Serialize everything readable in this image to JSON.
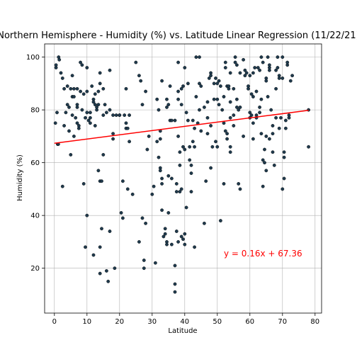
{
  "chart_data": {
    "type": "scatter",
    "title": "Northern Hemisphere - Humidity (%) vs. Latitude Linear Regression (11/22/21)",
    "xlabel": "Latitude",
    "ylabel": "Humidity (%)",
    "xlim": [
      -3,
      82
    ],
    "ylim": [
      3,
      105
    ],
    "xticks": [
      0,
      10,
      20,
      30,
      40,
      50,
      60,
      70,
      80
    ],
    "yticks": [
      20,
      40,
      60,
      80,
      100
    ],
    "grid": true,
    "point_color": "#1f3a4d",
    "line_color": "#ff0000",
    "annotation": {
      "text": "y = 0.16x + 67.36",
      "x": 52,
      "y": 25.5,
      "color": "#ff0000"
    },
    "regression": {
      "slope": 0.16,
      "intercept": 67.36,
      "x_range": [
        0,
        78
      ]
    },
    "points": [
      [
        0.5,
        97
      ],
      [
        0.5,
        96
      ],
      [
        0.8,
        79
      ],
      [
        0.3,
        75
      ],
      [
        1,
        67
      ],
      [
        1.2,
        67
      ],
      [
        1.3,
        100
      ],
      [
        1.5,
        99
      ],
      [
        2,
        94
      ],
      [
        2.5,
        92
      ],
      [
        2.5,
        51
      ],
      [
        3,
        88
      ],
      [
        3,
        74
      ],
      [
        3.5,
        79
      ],
      [
        4,
        82
      ],
      [
        4,
        89
      ],
      [
        4.5,
        81
      ],
      [
        4.5,
        72
      ],
      [
        5,
        88
      ],
      [
        5,
        63
      ],
      [
        5.5,
        93
      ],
      [
        5.5,
        78
      ],
      [
        5.5,
        85
      ],
      [
        6,
        88
      ],
      [
        6,
        85
      ],
      [
        6,
        70
      ],
      [
        6.5,
        77
      ],
      [
        7,
        81
      ],
      [
        7,
        75
      ],
      [
        7,
        88
      ],
      [
        7,
        82
      ],
      [
        7.5,
        73
      ],
      [
        7.5,
        74
      ],
      [
        8,
        87
      ],
      [
        8,
        98
      ],
      [
        8.5,
        97
      ],
      [
        8.5,
        80
      ],
      [
        9,
        52
      ],
      [
        9,
        86
      ],
      [
        9.5,
        77
      ],
      [
        9.5,
        28
      ],
      [
        10,
        96
      ],
      [
        10,
        87
      ],
      [
        10,
        79
      ],
      [
        10,
        40
      ],
      [
        10.5,
        76
      ],
      [
        11,
        75
      ],
      [
        11,
        77
      ],
      [
        11,
        79
      ],
      [
        11.5,
        89
      ],
      [
        12,
        84
      ],
      [
        12,
        83
      ],
      [
        12,
        25
      ],
      [
        12.5,
        74
      ],
      [
        12.5,
        82
      ],
      [
        12.5,
        86
      ],
      [
        13,
        80
      ],
      [
        13,
        81
      ],
      [
        13.5,
        87
      ],
      [
        13.5,
        82
      ],
      [
        13.5,
        57
      ],
      [
        14,
        94
      ],
      [
        14,
        90
      ],
      [
        14,
        53
      ],
      [
        14,
        28
      ],
      [
        14,
        18
      ],
      [
        14.5,
        53
      ],
      [
        14.5,
        35
      ],
      [
        15,
        88
      ],
      [
        15,
        78
      ],
      [
        15,
        63
      ],
      [
        15.5,
        82
      ],
      [
        16,
        79
      ],
      [
        16,
        19
      ],
      [
        16.5,
        15
      ],
      [
        17,
        95
      ],
      [
        17,
        80
      ],
      [
        17,
        34
      ],
      [
        18,
        78
      ],
      [
        18,
        71
      ],
      [
        18,
        69
      ],
      [
        18.5,
        20
      ],
      [
        19,
        78
      ],
      [
        20,
        78
      ],
      [
        20,
        78
      ],
      [
        20.5,
        41
      ],
      [
        21,
        53
      ],
      [
        21,
        39
      ],
      [
        21.5,
        78
      ],
      [
        22,
        88
      ],
      [
        22,
        75
      ],
      [
        22,
        73
      ],
      [
        22.5,
        73
      ],
      [
        22.5,
        50
      ],
      [
        23,
        78
      ],
      [
        23,
        68
      ],
      [
        24,
        48
      ],
      [
        25,
        98
      ],
      [
        26,
        93
      ],
      [
        26,
        30
      ],
      [
        26.5,
        91
      ],
      [
        27,
        82
      ],
      [
        27,
        39
      ],
      [
        27.5,
        23
      ],
      [
        27.5,
        20
      ],
      [
        28,
        37
      ],
      [
        28,
        87
      ],
      [
        28.5,
        65
      ],
      [
        29,
        70
      ],
      [
        30,
        48
      ],
      [
        30.5,
        51
      ],
      [
        31,
        22
      ],
      [
        31.5,
        84
      ],
      [
        31.5,
        68
      ],
      [
        32,
        80
      ],
      [
        32,
        62
      ],
      [
        32.5,
        72
      ],
      [
        32.5,
        69
      ],
      [
        32.5,
        58
      ],
      [
        32.5,
        57
      ],
      [
        33,
        91
      ],
      [
        33,
        42
      ],
      [
        33,
        54
      ],
      [
        33,
        52
      ],
      [
        33.5,
        32
      ],
      [
        34,
        35
      ],
      [
        34,
        33
      ],
      [
        34.5,
        84
      ],
      [
        34.5,
        81
      ],
      [
        34.5,
        30
      ],
      [
        34.5,
        29
      ],
      [
        35,
        55
      ],
      [
        35,
        41
      ],
      [
        35,
        82
      ],
      [
        35.5,
        89
      ],
      [
        35.5,
        76
      ],
      [
        36,
        76
      ],
      [
        36,
        54
      ],
      [
        36,
        29
      ],
      [
        37,
        14
      ],
      [
        37,
        11
      ],
      [
        37,
        76
      ],
      [
        37,
        21
      ],
      [
        37.5,
        49
      ],
      [
        37.5,
        52
      ],
      [
        37.5,
        34
      ],
      [
        38,
        98
      ],
      [
        38,
        87
      ],
      [
        38,
        84
      ],
      [
        38,
        70
      ],
      [
        38,
        30
      ],
      [
        38.5,
        64
      ],
      [
        38.5,
        59
      ],
      [
        38.5,
        49
      ],
      [
        39,
        88
      ],
      [
        39,
        82
      ],
      [
        39,
        50
      ],
      [
        39,
        32
      ],
      [
        39.5,
        89
      ],
      [
        39.5,
        31
      ],
      [
        39.5,
        66
      ],
      [
        40,
        96
      ],
      [
        40,
        33
      ],
      [
        40,
        29
      ],
      [
        40,
        65
      ],
      [
        40.5,
        43
      ],
      [
        40.5,
        79
      ],
      [
        41,
        90
      ],
      [
        41,
        76
      ],
      [
        41.5,
        66
      ],
      [
        41.5,
        61
      ],
      [
        42,
        56
      ],
      [
        42,
        49
      ],
      [
        42,
        59
      ],
      [
        42.5,
        76
      ],
      [
        42.5,
        68
      ],
      [
        43,
        28
      ],
      [
        43,
        66
      ],
      [
        43,
        73
      ],
      [
        43.5,
        100
      ],
      [
        43.5,
        85
      ],
      [
        44,
        75
      ],
      [
        44.5,
        100
      ],
      [
        44.5,
        90
      ],
      [
        44.5,
        80
      ],
      [
        45,
        72
      ],
      [
        45,
        89
      ],
      [
        46,
        81
      ],
      [
        46,
        37
      ],
      [
        46.5,
        53
      ],
      [
        47,
        83
      ],
      [
        47,
        71
      ],
      [
        47,
        77
      ],
      [
        47.5,
        92
      ],
      [
        48,
        94
      ],
      [
        48,
        93
      ],
      [
        48,
        74
      ],
      [
        48,
        58
      ],
      [
        48.5,
        66
      ],
      [
        49,
        84
      ],
      [
        49,
        90
      ],
      [
        49.5,
        92
      ],
      [
        49.5,
        68
      ],
      [
        50,
        66
      ],
      [
        50,
        84
      ],
      [
        50,
        90
      ],
      [
        50.5,
        91
      ],
      [
        50.5,
        82
      ],
      [
        51,
        38
      ],
      [
        51,
        89
      ],
      [
        51.5,
        80
      ],
      [
        52,
        75
      ],
      [
        52,
        52
      ],
      [
        52,
        85
      ],
      [
        52.5,
        72
      ],
      [
        52.5,
        98
      ],
      [
        52.5,
        96
      ],
      [
        53,
        71
      ],
      [
        53,
        89
      ],
      [
        53,
        69
      ],
      [
        53.5,
        88
      ],
      [
        53.5,
        89
      ],
      [
        54,
        77
      ],
      [
        54,
        94
      ],
      [
        54,
        83
      ],
      [
        54,
        64
      ],
      [
        54,
        66
      ],
      [
        55,
        74
      ],
      [
        55,
        78
      ],
      [
        55,
        88
      ],
      [
        55.5,
        100
      ],
      [
        55.5,
        98
      ],
      [
        56,
        84
      ],
      [
        56,
        97
      ],
      [
        56,
        81
      ],
      [
        56.5,
        80
      ],
      [
        56.5,
        52
      ],
      [
        57,
        81
      ],
      [
        57,
        94
      ],
      [
        57,
        50
      ],
      [
        58,
        99
      ],
      [
        58,
        70
      ],
      [
        58.5,
        93
      ],
      [
        58.5,
        95
      ],
      [
        59,
        94
      ],
      [
        59.5,
        89
      ],
      [
        59.5,
        88
      ],
      [
        60,
        77
      ],
      [
        60,
        93
      ],
      [
        60,
        79
      ],
      [
        60.5,
        86
      ],
      [
        60.5,
        78
      ],
      [
        61,
        75
      ],
      [
        61,
        94
      ],
      [
        61,
        85
      ],
      [
        61,
        69
      ],
      [
        61.5,
        96
      ],
      [
        62,
        87
      ],
      [
        62,
        78
      ],
      [
        62,
        77
      ],
      [
        62.5,
        96
      ],
      [
        63,
        95
      ],
      [
        63,
        81
      ],
      [
        63,
        79
      ],
      [
        63.5,
        84
      ],
      [
        63.5,
        71
      ],
      [
        63.5,
        100
      ],
      [
        64,
        61
      ],
      [
        64,
        51
      ],
      [
        64,
        98
      ],
      [
        64.5,
        60
      ],
      [
        64.5,
        65
      ],
      [
        65,
        57
      ],
      [
        65,
        70
      ],
      [
        65,
        92
      ],
      [
        65,
        91
      ],
      [
        65.5,
        100
      ],
      [
        65.5,
        85
      ],
      [
        66,
        95
      ],
      [
        66,
        96
      ],
      [
        66,
        97
      ],
      [
        66,
        69
      ],
      [
        66.5,
        80
      ],
      [
        67,
        74
      ],
      [
        67,
        71
      ],
      [
        67,
        64
      ],
      [
        67.5,
        59
      ],
      [
        68,
        77
      ],
      [
        68,
        88
      ],
      [
        68,
        95
      ],
      [
        68.5,
        100
      ],
      [
        68.5,
        96
      ],
      [
        69,
        92
      ],
      [
        69,
        93
      ],
      [
        69,
        73
      ],
      [
        69.5,
        77
      ],
      [
        70,
        92
      ],
      [
        70,
        50
      ],
      [
        70,
        100
      ],
      [
        70.5,
        54
      ],
      [
        70.5,
        64
      ],
      [
        70.5,
        62
      ],
      [
        71,
        73
      ],
      [
        71,
        76
      ],
      [
        71.5,
        97
      ],
      [
        71.5,
        98
      ],
      [
        72,
        77
      ],
      [
        72,
        78
      ],
      [
        72.5,
        91
      ],
      [
        73,
        93
      ],
      [
        78,
        80
      ],
      [
        78,
        66
      ]
    ]
  }
}
